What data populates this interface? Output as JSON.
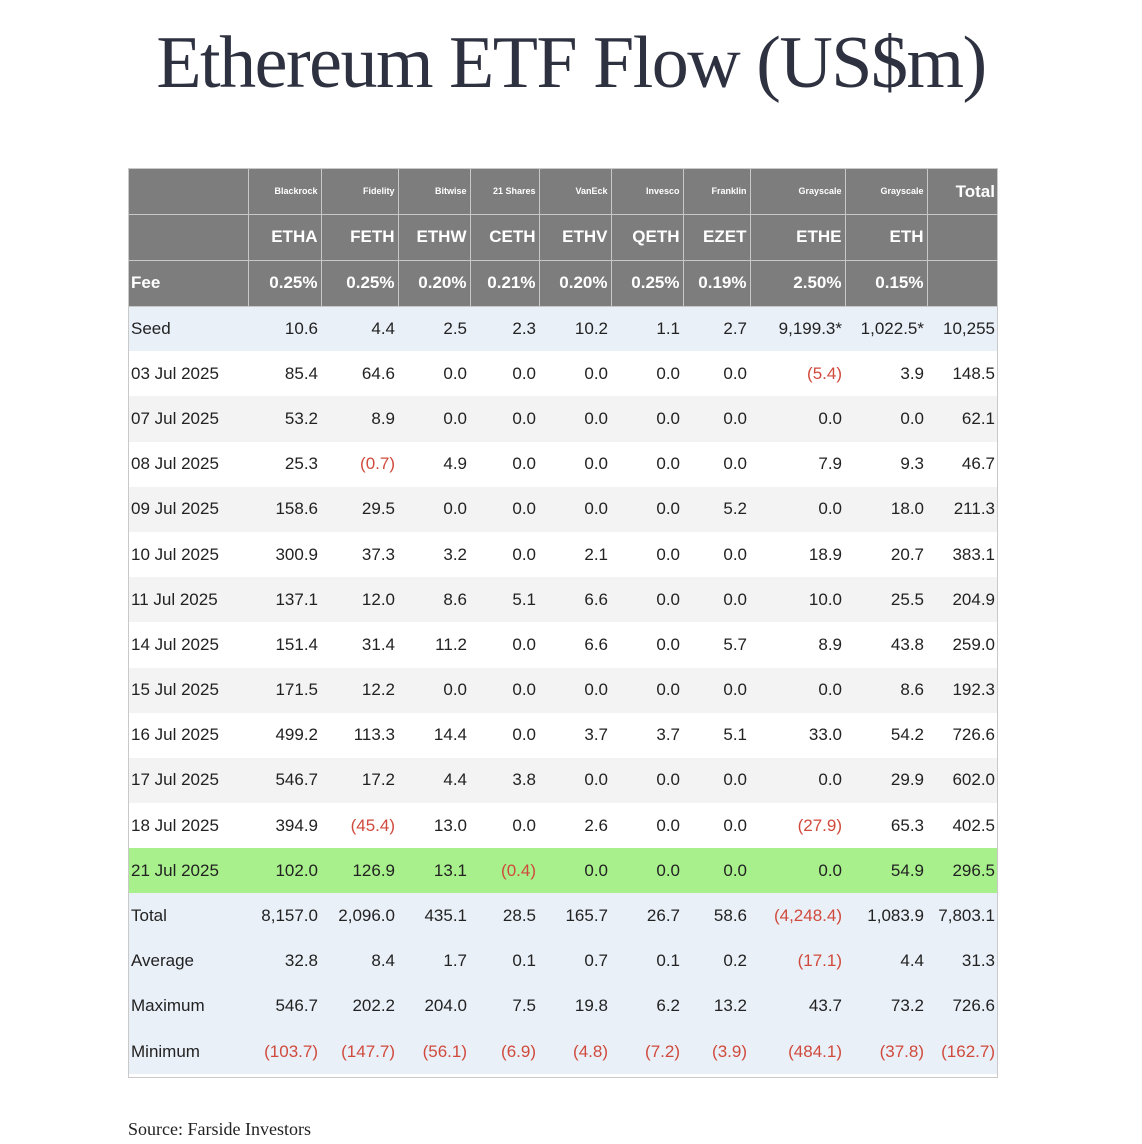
{
  "title": "Ethereum ETF Flow (US$m)",
  "source": "Source: Farside Investors",
  "chart_data": {
    "type": "table",
    "title": "Ethereum ETF Flow (US$m)",
    "issuers": [
      "Blackrock",
      "Fidelity",
      "Bitwise",
      "21 Shares",
      "VanEck",
      "Invesco",
      "Franklin",
      "Grayscale",
      "Grayscale"
    ],
    "total_header": "Total",
    "tickers": [
      "ETHA",
      "FETH",
      "ETHW",
      "CETH",
      "ETHV",
      "QETH",
      "EZET",
      "ETHE",
      "ETH"
    ],
    "fee_label": "Fee",
    "fees": [
      "0.25%",
      "0.25%",
      "0.20%",
      "0.21%",
      "0.20%",
      "0.25%",
      "0.19%",
      "2.50%",
      "0.15%"
    ],
    "rows": [
      {
        "label": "Seed",
        "values": [
          "10.6",
          "4.4",
          "2.5",
          "2.3",
          "10.2",
          "1.1",
          "2.7",
          "9,199.3*",
          "1,022.5*",
          "10,255"
        ],
        "style": "blue"
      },
      {
        "label": "03 Jul 2025",
        "values": [
          "85.4",
          "64.6",
          "0.0",
          "0.0",
          "0.0",
          "0.0",
          "0.0",
          "(5.4)",
          "3.9",
          "148.5"
        ],
        "style": "white"
      },
      {
        "label": "07 Jul 2025",
        "values": [
          "53.2",
          "8.9",
          "0.0",
          "0.0",
          "0.0",
          "0.0",
          "0.0",
          "0.0",
          "0.0",
          "62.1"
        ],
        "style": "grey"
      },
      {
        "label": "08 Jul 2025",
        "values": [
          "25.3",
          "(0.7)",
          "4.9",
          "0.0",
          "0.0",
          "0.0",
          "0.0",
          "7.9",
          "9.3",
          "46.7"
        ],
        "style": "white"
      },
      {
        "label": "09 Jul 2025",
        "values": [
          "158.6",
          "29.5",
          "0.0",
          "0.0",
          "0.0",
          "0.0",
          "5.2",
          "0.0",
          "18.0",
          "211.3"
        ],
        "style": "grey"
      },
      {
        "label": "10 Jul 2025",
        "values": [
          "300.9",
          "37.3",
          "3.2",
          "0.0",
          "2.1",
          "0.0",
          "0.0",
          "18.9",
          "20.7",
          "383.1"
        ],
        "style": "white"
      },
      {
        "label": "11 Jul 2025",
        "values": [
          "137.1",
          "12.0",
          "8.6",
          "5.1",
          "6.6",
          "0.0",
          "0.0",
          "10.0",
          "25.5",
          "204.9"
        ],
        "style": "grey"
      },
      {
        "label": "14 Jul 2025",
        "values": [
          "151.4",
          "31.4",
          "11.2",
          "0.0",
          "6.6",
          "0.0",
          "5.7",
          "8.9",
          "43.8",
          "259.0"
        ],
        "style": "white"
      },
      {
        "label": "15 Jul 2025",
        "values": [
          "171.5",
          "12.2",
          "0.0",
          "0.0",
          "0.0",
          "0.0",
          "0.0",
          "0.0",
          "8.6",
          "192.3"
        ],
        "style": "grey"
      },
      {
        "label": "16 Jul 2025",
        "values": [
          "499.2",
          "113.3",
          "14.4",
          "0.0",
          "3.7",
          "3.7",
          "5.1",
          "33.0",
          "54.2",
          "726.6"
        ],
        "style": "white"
      },
      {
        "label": "17 Jul 2025",
        "values": [
          "546.7",
          "17.2",
          "4.4",
          "3.8",
          "0.0",
          "0.0",
          "0.0",
          "0.0",
          "29.9",
          "602.0"
        ],
        "style": "grey"
      },
      {
        "label": "18 Jul 2025",
        "values": [
          "394.9",
          "(45.4)",
          "13.0",
          "0.0",
          "2.6",
          "0.0",
          "0.0",
          "(27.9)",
          "65.3",
          "402.5"
        ],
        "style": "white"
      },
      {
        "label": "21 Jul 2025",
        "values": [
          "102.0",
          "126.9",
          "13.1",
          "(0.4)",
          "0.0",
          "0.0",
          "0.0",
          "0.0",
          "54.9",
          "296.5"
        ],
        "style": "green"
      },
      {
        "label": "Total",
        "values": [
          "8,157.0",
          "2,096.0",
          "435.1",
          "28.5",
          "165.7",
          "26.7",
          "58.6",
          "(4,248.4)",
          "1,083.9",
          "7,803.1"
        ],
        "style": "blue"
      },
      {
        "label": "Average",
        "values": [
          "32.8",
          "8.4",
          "1.7",
          "0.1",
          "0.7",
          "0.1",
          "0.2",
          "(17.1)",
          "4.4",
          "31.3"
        ],
        "style": "blue"
      },
      {
        "label": "Maximum",
        "values": [
          "546.7",
          "202.2",
          "204.0",
          "7.5",
          "19.8",
          "6.2",
          "13.2",
          "43.7",
          "73.2",
          "726.6"
        ],
        "style": "blue"
      },
      {
        "label": "Minimum",
        "values": [
          "(103.7)",
          "(147.7)",
          "(56.1)",
          "(6.9)",
          "(4.8)",
          "(7.2)",
          "(3.9)",
          "(484.1)",
          "(37.8)",
          "(162.7)"
        ],
        "style": "blue"
      }
    ],
    "colors": {
      "header_bg": "#7d7d7d",
      "negative": "#d04a3c",
      "highlight": "#a8f08c",
      "summary_bg": "#eaf0f8",
      "stripe": "#f3f3f3"
    }
  }
}
